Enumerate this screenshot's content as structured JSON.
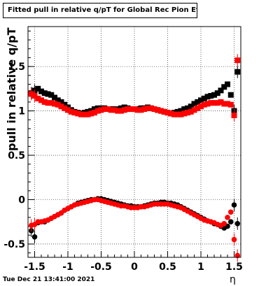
{
  "chart_data": {
    "type": "scatter",
    "title": "Fitted pull in relative q/pT for Global Rec Pion EtapT",
    "xlabel": "η",
    "ylabel": "pull in relative q/pT",
    "xlim": [
      -1.6,
      1.6
    ],
    "ylim": [
      -0.65,
      1.95
    ],
    "xticks": [
      -1.5,
      -1,
      -0.5,
      0,
      0.5,
      1,
      1.5
    ],
    "xtick_labels": [
      "-1.5",
      "-1",
      "-0.5",
      "0",
      "0.5",
      "1",
      "1.5"
    ],
    "yticks": [
      -0.5,
      0,
      0.5,
      1,
      1.5
    ],
    "ytick_labels": [
      "-0.5",
      "0",
      "0.5",
      "1",
      "1.5"
    ],
    "grid": true,
    "series": [
      {
        "marker": "square",
        "color": "#000000",
        "x": [
          -1.55,
          -1.5,
          -1.45,
          -1.4,
          -1.35,
          -1.3,
          -1.25,
          -1.2,
          -1.15,
          -1.1,
          -1.05,
          -1.0,
          -0.95,
          -0.9,
          -0.85,
          -0.8,
          -0.75,
          -0.7,
          -0.65,
          -0.6,
          -0.55,
          -0.5,
          -0.45,
          -0.4,
          -0.35,
          -0.3,
          -0.25,
          -0.2,
          -0.15,
          -0.1,
          -0.05,
          0.0,
          0.05,
          0.1,
          0.15,
          0.2,
          0.25,
          0.3,
          0.35,
          0.4,
          0.45,
          0.5,
          0.55,
          0.6,
          0.65,
          0.7,
          0.75,
          0.8,
          0.85,
          0.9,
          0.95,
          1.0,
          1.05,
          1.1,
          1.15,
          1.2,
          1.25,
          1.3,
          1.35,
          1.4,
          1.45,
          1.5,
          1.55
        ],
        "y": [
          1.2,
          1.23,
          1.25,
          1.22,
          1.2,
          1.19,
          1.18,
          1.15,
          1.12,
          1.1,
          1.07,
          1.04,
          1.01,
          0.99,
          0.98,
          0.97,
          0.98,
          0.99,
          1.0,
          1.02,
          1.03,
          1.03,
          1.03,
          1.02,
          1.02,
          1.02,
          1.02,
          1.03,
          1.04,
          1.03,
          1.02,
          1.02,
          1.02,
          1.03,
          1.03,
          1.04,
          1.03,
          1.02,
          1.01,
          1.0,
          0.99,
          0.98,
          0.97,
          0.98,
          0.99,
          1.0,
          1.02,
          1.03,
          1.05,
          1.08,
          1.1,
          1.12,
          1.14,
          1.16,
          1.17,
          1.18,
          1.2,
          1.23,
          1.27,
          1.3,
          1.18,
          1.0,
          1.44
        ]
      },
      {
        "marker": "square",
        "color": "#ff0000",
        "x": [
          -1.55,
          -1.5,
          -1.45,
          -1.4,
          -1.35,
          -1.3,
          -1.25,
          -1.2,
          -1.15,
          -1.1,
          -1.05,
          -1.0,
          -0.95,
          -0.9,
          -0.85,
          -0.8,
          -0.75,
          -0.7,
          -0.65,
          -0.6,
          -0.55,
          -0.5,
          -0.45,
          -0.4,
          -0.35,
          -0.3,
          -0.25,
          -0.2,
          -0.15,
          -0.1,
          -0.05,
          0.0,
          0.05,
          0.1,
          0.15,
          0.2,
          0.25,
          0.3,
          0.35,
          0.4,
          0.45,
          0.5,
          0.55,
          0.6,
          0.65,
          0.7,
          0.75,
          0.8,
          0.85,
          0.9,
          0.95,
          1.0,
          1.05,
          1.1,
          1.15,
          1.2,
          1.25,
          1.3,
          1.35,
          1.4,
          1.45,
          1.5,
          1.55
        ],
        "y": [
          1.19,
          1.17,
          1.14,
          1.12,
          1.1,
          1.09,
          1.09,
          1.08,
          1.07,
          1.05,
          1.03,
          1.01,
          0.99,
          0.98,
          0.97,
          0.96,
          0.96,
          0.96,
          0.97,
          0.98,
          1.0,
          1.01,
          1.02,
          1.02,
          1.01,
          1.01,
          1.0,
          1.0,
          1.01,
          1.02,
          1.02,
          1.02,
          1.01,
          1.01,
          1.02,
          1.03,
          1.03,
          1.02,
          1.01,
          1.0,
          0.99,
          0.98,
          0.97,
          0.96,
          0.96,
          0.96,
          0.97,
          0.98,
          0.99,
          1.01,
          1.03,
          1.05,
          1.07,
          1.08,
          1.09,
          1.09,
          1.09,
          1.1,
          1.08,
          1.08,
          1.07,
          0.95,
          1.57
        ]
      },
      {
        "marker": "circle",
        "color": "#000000",
        "x": [
          -1.55,
          -1.5,
          -1.45,
          -1.4,
          -1.35,
          -1.3,
          -1.25,
          -1.2,
          -1.15,
          -1.1,
          -1.05,
          -1.0,
          -0.95,
          -0.9,
          -0.85,
          -0.8,
          -0.75,
          -0.7,
          -0.65,
          -0.6,
          -0.55,
          -0.5,
          -0.45,
          -0.4,
          -0.35,
          -0.3,
          -0.25,
          -0.2,
          -0.15,
          -0.1,
          -0.05,
          0.0,
          0.05,
          0.1,
          0.15,
          0.2,
          0.25,
          0.3,
          0.35,
          0.4,
          0.45,
          0.5,
          0.55,
          0.6,
          0.65,
          0.7,
          0.75,
          0.8,
          0.85,
          0.9,
          0.95,
          1.0,
          1.05,
          1.1,
          1.15,
          1.2,
          1.25,
          1.3,
          1.35,
          1.4,
          1.45,
          1.5,
          1.55
        ],
        "y": [
          -0.35,
          -0.42,
          -0.26,
          -0.25,
          -0.25,
          -0.23,
          -0.21,
          -0.19,
          -0.17,
          -0.15,
          -0.12,
          -0.1,
          -0.08,
          -0.06,
          -0.04,
          -0.03,
          -0.02,
          -0.01,
          0.0,
          0.0,
          0.01,
          0.01,
          0.0,
          -0.01,
          -0.02,
          -0.03,
          -0.04,
          -0.05,
          -0.06,
          -0.07,
          -0.07,
          -0.08,
          -0.08,
          -0.08,
          -0.07,
          -0.06,
          -0.05,
          -0.04,
          -0.04,
          -0.03,
          -0.03,
          -0.04,
          -0.04,
          -0.05,
          -0.06,
          -0.08,
          -0.1,
          -0.12,
          -0.14,
          -0.16,
          -0.18,
          -0.2,
          -0.22,
          -0.24,
          -0.25,
          -0.27,
          -0.28,
          -0.3,
          -0.32,
          -0.3,
          -0.25,
          -0.06,
          -0.27
        ]
      },
      {
        "marker": "circle",
        "color": "#ff0000",
        "x": [
          -1.55,
          -1.5,
          -1.45,
          -1.4,
          -1.35,
          -1.3,
          -1.25,
          -1.2,
          -1.15,
          -1.1,
          -1.05,
          -1.0,
          -0.95,
          -0.9,
          -0.85,
          -0.8,
          -0.75,
          -0.7,
          -0.65,
          -0.6,
          -0.55,
          -0.5,
          -0.45,
          -0.4,
          -0.35,
          -0.3,
          -0.25,
          -0.2,
          -0.15,
          -0.1,
          -0.05,
          0.0,
          0.05,
          0.1,
          0.15,
          0.2,
          0.25,
          0.3,
          0.35,
          0.4,
          0.45,
          0.5,
          0.55,
          0.6,
          0.65,
          0.7,
          0.75,
          0.8,
          0.85,
          0.9,
          0.95,
          1.0,
          1.05,
          1.1,
          1.15,
          1.2,
          1.25,
          1.3,
          1.35,
          1.4,
          1.45,
          1.5,
          1.55
        ],
        "y": [
          -0.29,
          -0.28,
          -0.25,
          -0.25,
          -0.24,
          -0.23,
          -0.21,
          -0.19,
          -0.17,
          -0.15,
          -0.12,
          -0.1,
          -0.08,
          -0.06,
          -0.05,
          -0.04,
          -0.03,
          -0.02,
          -0.01,
          0.0,
          0.0,
          -0.01,
          -0.02,
          -0.03,
          -0.04,
          -0.05,
          -0.06,
          -0.07,
          -0.07,
          -0.08,
          -0.09,
          -0.09,
          -0.09,
          -0.08,
          -0.08,
          -0.07,
          -0.06,
          -0.05,
          -0.05,
          -0.05,
          -0.05,
          -0.05,
          -0.06,
          -0.07,
          -0.08,
          -0.09,
          -0.11,
          -0.13,
          -0.15,
          -0.17,
          -0.19,
          -0.21,
          -0.23,
          -0.24,
          -0.25,
          -0.26,
          -0.28,
          -0.29,
          -0.27,
          -0.2,
          -0.14,
          -0.45,
          -0.63
        ]
      }
    ]
  },
  "footer": {
    "timestamp": "Tue Dec 21 13:41:00 2021"
  }
}
